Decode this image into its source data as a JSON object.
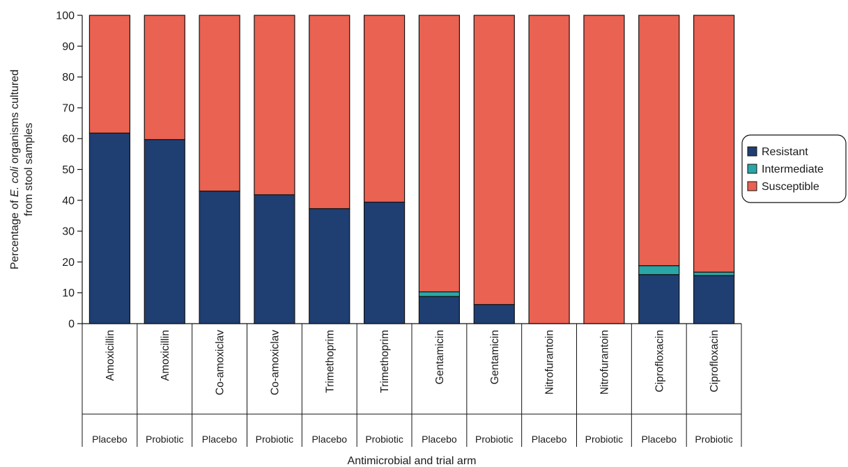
{
  "chart_data": {
    "type": "bar",
    "stacked": true,
    "xlabel": "Antimicrobial and trial arm",
    "ylabel_parts": [
      "Percentage of ",
      "E. coli",
      " organisms cultured"
    ],
    "ylabel_line2": "from stool samples",
    "ylim": [
      0,
      100
    ],
    "yticks": [
      0,
      10,
      20,
      30,
      40,
      50,
      60,
      70,
      80,
      90,
      100
    ],
    "grid": false,
    "legend_position": "right",
    "categories": [
      {
        "antimicrobial": "Amoxicillin",
        "arm": "Placebo"
      },
      {
        "antimicrobial": "Amoxicillin",
        "arm": "Probiotic"
      },
      {
        "antimicrobial": "Co-amoxiclav",
        "arm": "Placebo"
      },
      {
        "antimicrobial": "Co-amoxiclav",
        "arm": "Probiotic"
      },
      {
        "antimicrobial": "Trimethoprim",
        "arm": "Placebo"
      },
      {
        "antimicrobial": "Trimethoprim",
        "arm": "Probiotic"
      },
      {
        "antimicrobial": "Gentamicin",
        "arm": "Placebo"
      },
      {
        "antimicrobial": "Gentamicin",
        "arm": "Probiotic"
      },
      {
        "antimicrobial": "Nitrofurantoin",
        "arm": "Placebo"
      },
      {
        "antimicrobial": "Nitrofurantoin",
        "arm": "Probiotic"
      },
      {
        "antimicrobial": "Ciprofloxacin",
        "arm": "Placebo"
      },
      {
        "antimicrobial": "Ciprofloxacin",
        "arm": "Probiotic"
      }
    ],
    "series": [
      {
        "name": "Resistant",
        "color": "#1f3f73",
        "values": [
          61.8,
          59.7,
          43.0,
          41.8,
          37.3,
          39.4,
          8.8,
          6.2,
          0,
          0,
          15.9,
          15.6
        ]
      },
      {
        "name": "Intermediate",
        "color": "#2aa6a6",
        "values": [
          0,
          0,
          0,
          0,
          0,
          0,
          1.5,
          0,
          0,
          0,
          2.9,
          1.1
        ]
      },
      {
        "name": "Susceptible",
        "color": "#e96252",
        "values": [
          38.2,
          40.3,
          57.0,
          58.2,
          62.7,
          60.6,
          89.7,
          93.8,
          100,
          100,
          81.2,
          83.3
        ]
      }
    ]
  }
}
